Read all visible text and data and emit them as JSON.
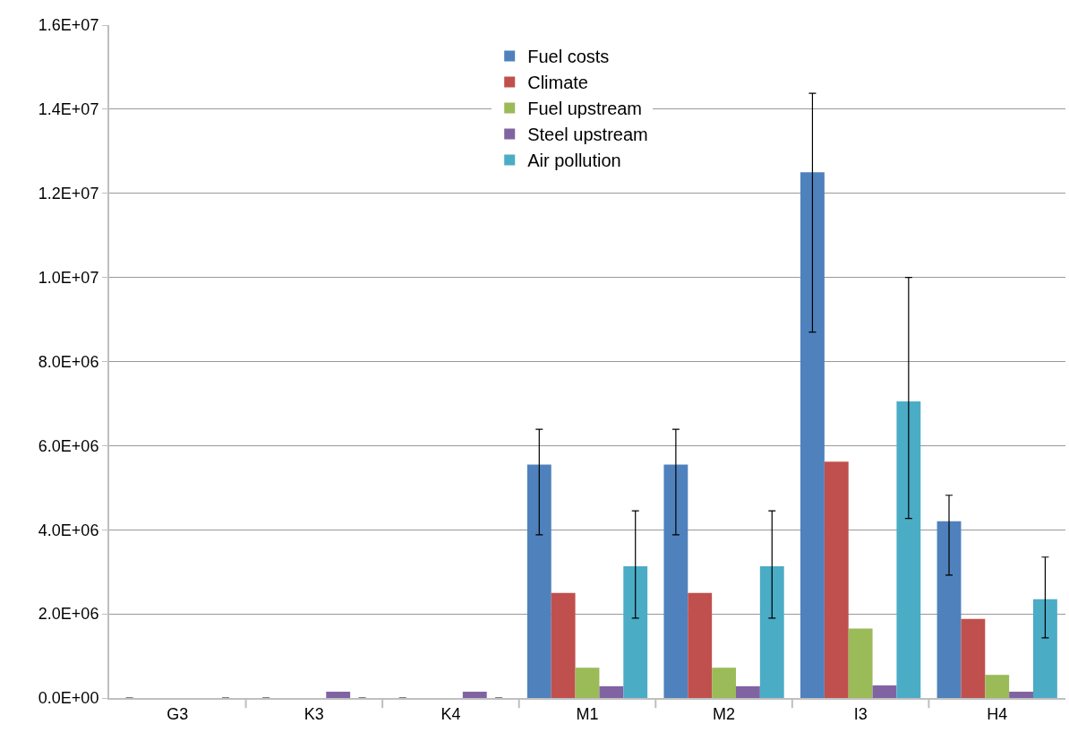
{
  "chart_data": {
    "type": "bar",
    "categories": [
      "G3",
      "K3",
      "K4",
      "M1",
      "M2",
      "I3",
      "H4"
    ],
    "series": [
      {
        "name": "Fuel costs",
        "color": "#4f81bd",
        "values": [
          0,
          0,
          0,
          5550000,
          5550000,
          12500000,
          4200000
        ],
        "errors": [
          null,
          null,
          null,
          [
            3880000,
            6390000
          ],
          [
            3880000,
            6390000
          ],
          [
            8700000,
            14380000
          ],
          [
            2920000,
            4820000
          ]
        ]
      },
      {
        "name": "Climate",
        "color": "#c0504d",
        "values": [
          0,
          0,
          0,
          2500000,
          2500000,
          5620000,
          1880000
        ]
      },
      {
        "name": "Fuel upstream",
        "color": "#9bbb59",
        "values": [
          0,
          0,
          0,
          720000,
          720000,
          1650000,
          550000
        ]
      },
      {
        "name": "Steel upstream",
        "color": "#8064a2",
        "values": [
          0,
          150000,
          150000,
          280000,
          280000,
          300000,
          150000
        ]
      },
      {
        "name": "Air pollution",
        "color": "#4bacc6",
        "values": [
          0,
          0,
          0,
          3130000,
          3130000,
          7050000,
          2350000
        ],
        "errors": [
          null,
          null,
          null,
          [
            1900000,
            4450000
          ],
          [
            1900000,
            4450000
          ],
          [
            4270000,
            10000000
          ],
          [
            1430000,
            3350000
          ]
        ]
      }
    ],
    "ylim": [
      0,
      16000000
    ],
    "yticks": [
      {
        "value": 0,
        "label": "0.0E+00"
      },
      {
        "value": 2000000,
        "label": "2.0E+06"
      },
      {
        "value": 4000000,
        "label": "4.0E+06"
      },
      {
        "value": 6000000,
        "label": "6.0E+06"
      },
      {
        "value": 8000000,
        "label": "8.0E+06"
      },
      {
        "value": 10000000,
        "label": "1.0E+07"
      },
      {
        "value": 12000000,
        "label": "1.2E+07"
      },
      {
        "value": 14000000,
        "label": "1.4E+07"
      },
      {
        "value": 16000000,
        "label": "1.6E+07"
      }
    ],
    "grid": "y",
    "legend": "top"
  }
}
